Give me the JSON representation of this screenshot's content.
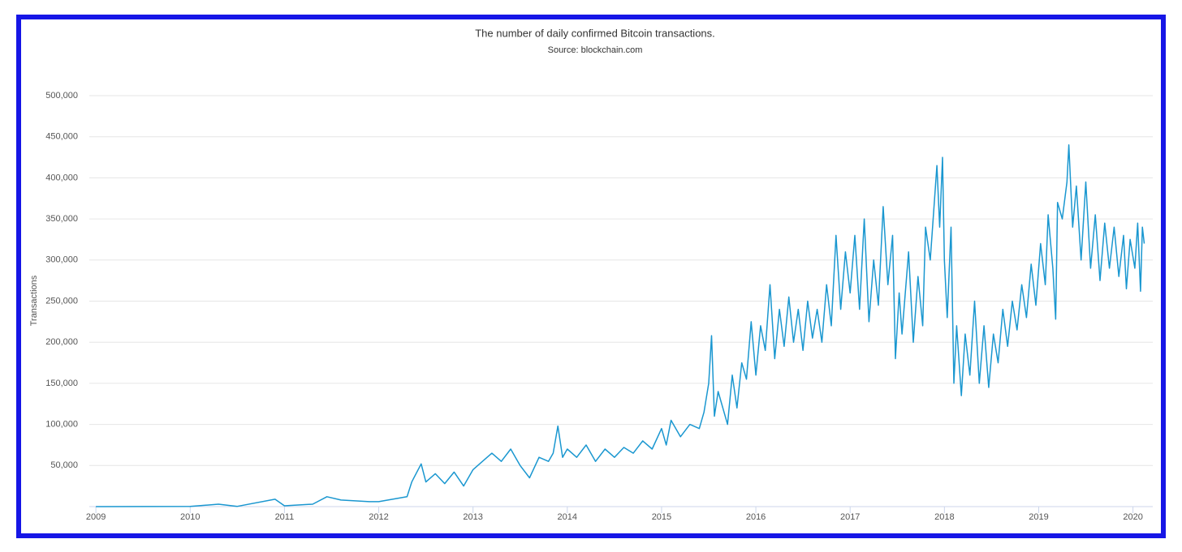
{
  "chart_data": {
    "type": "line",
    "title": "The number of daily confirmed Bitcoin transactions.",
    "subtitle": "Source: blockchain.com",
    "y_label": "Transactions",
    "xlim": [
      2008.93,
      2020.21
    ],
    "xticks": [
      2009,
      2010,
      2011,
      2012,
      2013,
      2014,
      2015,
      2016,
      2017,
      2018,
      2019,
      2020
    ],
    "ylim": [
      0,
      500000
    ],
    "yticks": [
      {
        "value": 50000,
        "label": "50,000"
      },
      {
        "value": 100000,
        "label": "100,000"
      },
      {
        "value": 150000,
        "label": "150,000"
      },
      {
        "value": 200000,
        "label": "200,000"
      },
      {
        "value": 250000,
        "label": "250,000"
      },
      {
        "value": 300000,
        "label": "300,000"
      },
      {
        "value": 350000,
        "label": "350,000"
      },
      {
        "value": 400000,
        "label": "400,000"
      },
      {
        "value": 450000,
        "label": "450,000"
      },
      {
        "value": 500000,
        "label": "500,000"
      }
    ],
    "grid": true,
    "series": [
      {
        "name": "Transactions",
        "color": "#1a97d0",
        "x": [
          2009.0,
          2010.0,
          2010.3,
          2010.5,
          2010.9,
          2011.0,
          2011.3,
          2011.45,
          2011.6,
          2011.9,
          2012.0,
          2012.3,
          2012.35,
          2012.45,
          2012.5,
          2012.6,
          2012.7,
          2012.8,
          2012.9,
          2013.0,
          2013.1,
          2013.2,
          2013.3,
          2013.4,
          2013.5,
          2013.6,
          2013.7,
          2013.8,
          2013.85,
          2013.9,
          2013.95,
          2014.0,
          2014.1,
          2014.2,
          2014.3,
          2014.4,
          2014.5,
          2014.6,
          2014.7,
          2014.8,
          2014.9,
          2015.0,
          2015.05,
          2015.1,
          2015.2,
          2015.3,
          2015.4,
          2015.45,
          2015.5,
          2015.53,
          2015.56,
          2015.6,
          2015.7,
          2015.75,
          2015.8,
          2015.85,
          2015.9,
          2015.95,
          2016.0,
          2016.05,
          2016.1,
          2016.15,
          2016.2,
          2016.25,
          2016.3,
          2016.35,
          2016.4,
          2016.45,
          2016.5,
          2016.55,
          2016.6,
          2016.65,
          2016.7,
          2016.75,
          2016.8,
          2016.85,
          2016.9,
          2016.95,
          2017.0,
          2017.05,
          2017.1,
          2017.15,
          2017.2,
          2017.25,
          2017.3,
          2017.35,
          2017.4,
          2017.45,
          2017.48,
          2017.52,
          2017.55,
          2017.62,
          2017.67,
          2017.72,
          2017.77,
          2017.8,
          2017.85,
          2017.92,
          2017.95,
          2017.98,
          2018.0,
          2018.03,
          2018.07,
          2018.1,
          2018.13,
          2018.18,
          2018.22,
          2018.27,
          2018.32,
          2018.37,
          2018.42,
          2018.47,
          2018.52,
          2018.57,
          2018.62,
          2018.67,
          2018.72,
          2018.77,
          2018.82,
          2018.87,
          2018.92,
          2018.97,
          2019.02,
          2019.07,
          2019.1,
          2019.15,
          2019.18,
          2019.2,
          2019.25,
          2019.3,
          2019.32,
          2019.36,
          2019.4,
          2019.45,
          2019.5,
          2019.55,
          2019.6,
          2019.65,
          2019.7,
          2019.75,
          2019.8,
          2019.85,
          2019.9,
          2019.93,
          2019.97,
          2020.02,
          2020.05,
          2020.08,
          2020.1,
          2020.12
        ],
        "values": [
          0,
          200,
          3000,
          300,
          9000,
          1000,
          3000,
          12000,
          8000,
          6000,
          6000,
          12000,
          30000,
          52000,
          30000,
          40000,
          28000,
          42000,
          25000,
          45000,
          55000,
          65000,
          55000,
          70000,
          50000,
          35000,
          60000,
          55000,
          65000,
          98000,
          60000,
          70000,
          60000,
          75000,
          55000,
          70000,
          60000,
          72000,
          65000,
          80000,
          70000,
          95000,
          75000,
          105000,
          85000,
          100000,
          95000,
          115000,
          150000,
          208000,
          110000,
          140000,
          100000,
          160000,
          120000,
          175000,
          155000,
          225000,
          160000,
          220000,
          190000,
          270000,
          180000,
          240000,
          195000,
          255000,
          200000,
          240000,
          190000,
          250000,
          205000,
          240000,
          200000,
          270000,
          220000,
          330000,
          240000,
          310000,
          260000,
          330000,
          240000,
          350000,
          225000,
          300000,
          245000,
          365000,
          270000,
          330000,
          180000,
          260000,
          210000,
          310000,
          200000,
          280000,
          220000,
          340000,
          300000,
          415000,
          340000,
          425000,
          300000,
          230000,
          340000,
          150000,
          220000,
          135000,
          210000,
          160000,
          250000,
          150000,
          220000,
          145000,
          210000,
          175000,
          240000,
          195000,
          250000,
          215000,
          270000,
          230000,
          295000,
          245000,
          320000,
          270000,
          355000,
          290000,
          228000,
          370000,
          350000,
          395000,
          440000,
          340000,
          390000,
          300000,
          395000,
          290000,
          355000,
          275000,
          345000,
          290000,
          340000,
          280000,
          330000,
          265000,
          325000,
          290000,
          345000,
          262000,
          340000,
          320000
        ]
      }
    ]
  }
}
